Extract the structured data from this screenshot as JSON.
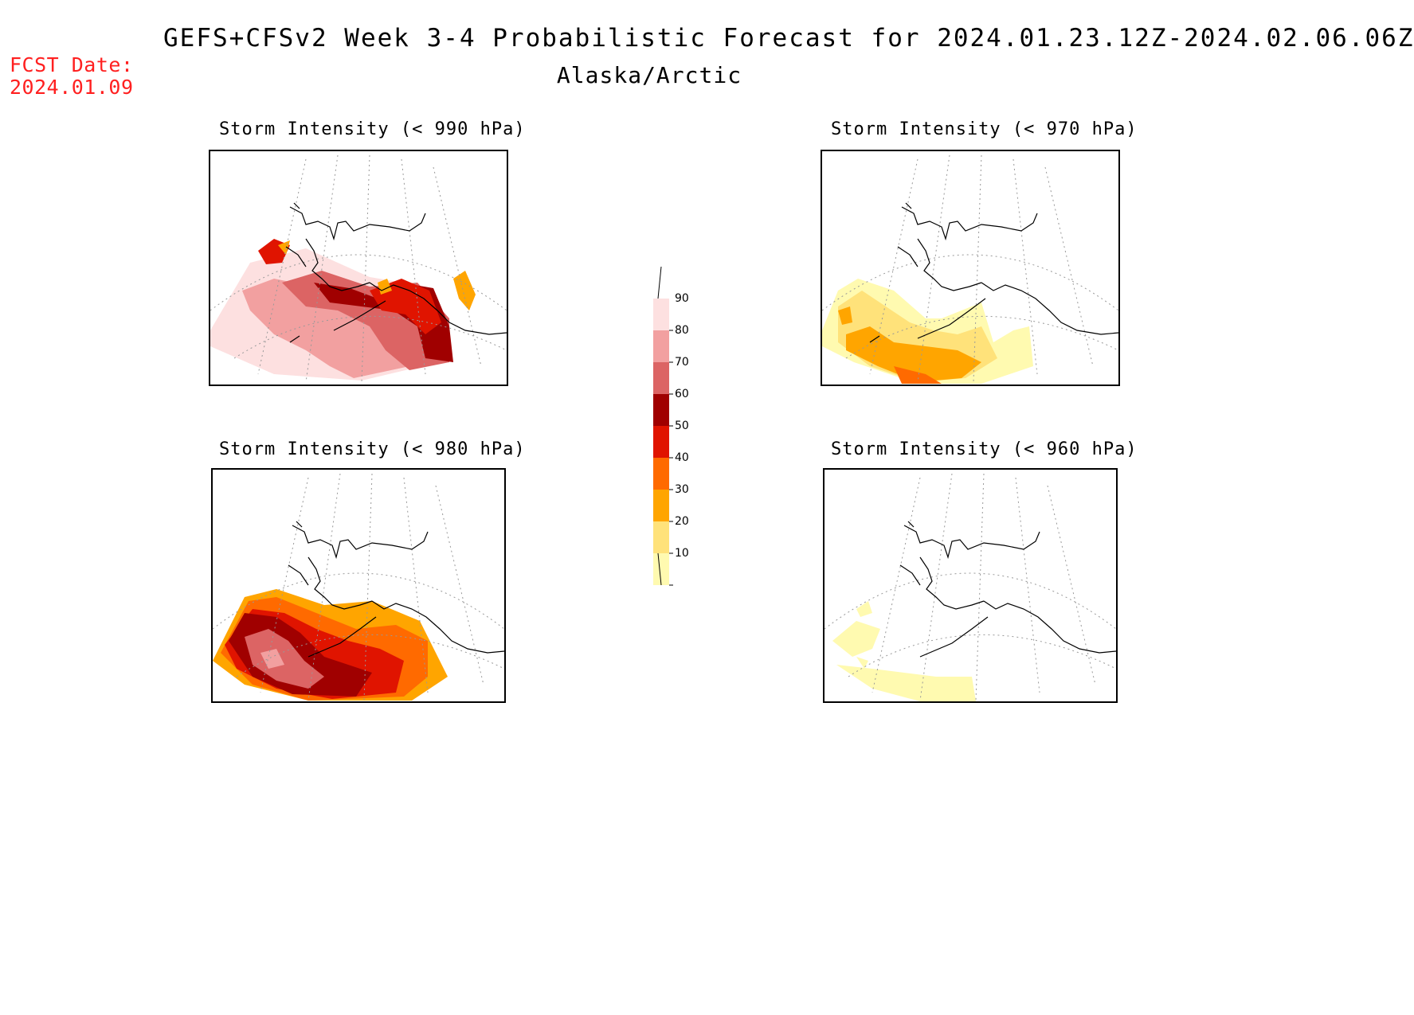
{
  "header": {
    "title": "GEFS+CFSv2 Week 3-4 Probabilistic Forecast for 2024.01.23.12Z-2024.02.06.06Z",
    "subtitle": "Alaska/Arctic",
    "fcst_label": "FCST Date:",
    "fcst_date": "2024.01.09"
  },
  "panels": [
    {
      "title": "Storm Intensity (< 990 hPa)",
      "threshold": "990",
      "level": "high"
    },
    {
      "title": "Storm Intensity (< 970 hPa)",
      "threshold": "970",
      "level": "mid"
    },
    {
      "title": "Storm Intensity (< 980 hPa)",
      "threshold": "980",
      "level": "highmid"
    },
    {
      "title": "Storm Intensity (< 960 hPa)",
      "threshold": "960",
      "level": "low"
    }
  ],
  "colorbar": {
    "labels": [
      "90",
      "80",
      "70",
      "60",
      "50",
      "40",
      "30",
      "20",
      "10"
    ],
    "colors": [
      "#fde0e0",
      "#f2a0a0",
      "#dc6464",
      "#a00000",
      "#e01400",
      "#ff6a00",
      "#ffa500",
      "#ffe27a",
      "#fffab0"
    ]
  }
}
